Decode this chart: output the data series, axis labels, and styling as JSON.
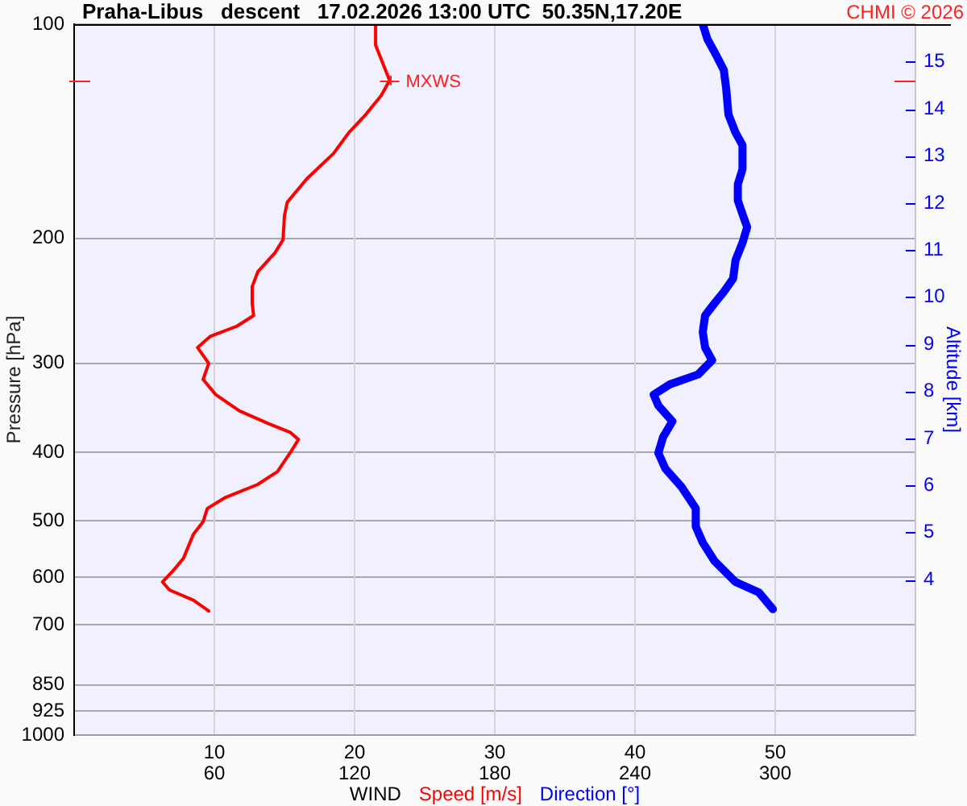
{
  "chart_data": {
    "type": "line",
    "title": "Praha-Libus   descent   17.02.2026 13:00 UTC  50.35N,17.20E",
    "xlabel": "WIND",
    "ylabel": "Pressure [hPa]",
    "y2label": "Altitude [km]",
    "annotations": [
      "CHMI © 2026",
      {
        "text": "MXWS",
        "x": 22.5,
        "y": 120
      }
    ],
    "series": [
      {
        "name": "Speed [m/s]",
        "color": "#ff0000",
        "x": [
          21.5,
          21.5,
          21.9,
          22.5,
          21.9,
          20.8,
          19.6,
          18.5,
          16.6,
          15.2,
          15.0,
          14.9,
          14.3,
          13.1,
          12.7,
          12.7,
          12.8,
          11.6,
          9.7,
          8.8,
          9.6,
          9.2,
          10.1,
          11.8,
          13.9,
          15.4,
          16.0,
          15.4,
          14.5,
          13.1,
          10.8,
          9.5,
          9.2,
          8.5,
          7.8,
          7.0,
          6.3,
          6.8,
          8.5,
          9.6
        ],
        "values": [
          100,
          107,
          112,
          120,
          126,
          134,
          142,
          152,
          165,
          178,
          186,
          201,
          210,
          223,
          234,
          247,
          257,
          266,
          275,
          285,
          300,
          316,
          332,
          350,
          365,
          375,
          384,
          401,
          426,
          444,
          463,
          480,
          501,
          522,
          564,
          589,
          609,
          625,
          646,
          669
        ]
      },
      {
        "name": "Direction [°]",
        "color": "#0000ff",
        "axis": "x2",
        "x": [
          269,
          271,
          275,
          278,
          279,
          280,
          283,
          286,
          286,
          284,
          284,
          286,
          288,
          286,
          283,
          282,
          278,
          274,
          270,
          269,
          270,
          273,
          267,
          255,
          248,
          250,
          256,
          252,
          250,
          253,
          260,
          266,
          266,
          269,
          274,
          283,
          293,
          299
        ],
        "values": [
          100,
          105,
          111,
          116,
          123,
          134,
          142,
          148,
          160,
          168,
          177,
          185,
          193,
          203,
          215,
          228,
          238,
          247,
          257,
          271,
          285,
          297,
          311,
          321,
          332,
          344,
          362,
          381,
          401,
          422,
          448,
          480,
          509,
          536,
          569,
          609,
          630,
          665
        ]
      }
    ],
    "xlim": [
      0,
      60
    ],
    "xticks": [
      10,
      20,
      30,
      40,
      50
    ],
    "x2lim": [
      0,
      360
    ],
    "x2ticks": [
      60,
      120,
      180,
      240,
      300
    ],
    "ylim": [
      1000,
      100
    ],
    "yticks": [
      100,
      200,
      300,
      400,
      500,
      600,
      700,
      850,
      925,
      1000
    ],
    "log": true,
    "y2lim": [
      0.7,
      15.8
    ],
    "y2ticks": [
      4,
      5,
      6,
      7,
      8,
      9,
      10,
      11,
      12,
      13,
      14,
      15
    ],
    "grid": true,
    "legend": "bottom",
    "marker": "none",
    "line_style": "solid"
  }
}
